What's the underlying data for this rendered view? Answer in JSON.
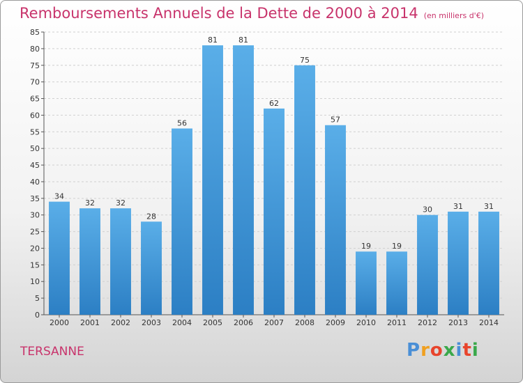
{
  "chart_data": {
    "type": "bar",
    "title": "Remboursements Annuels de la Dette de 2000 à 2014",
    "subtitle": "(en milliers d'€)",
    "categories": [
      "2000",
      "2001",
      "2002",
      "2003",
      "2004",
      "2005",
      "2006",
      "2007",
      "2008",
      "2009",
      "2010",
      "2011",
      "2012",
      "2013",
      "2014"
    ],
    "values": [
      34,
      32,
      32,
      28,
      56,
      81,
      81,
      62,
      75,
      57,
      19,
      19,
      30,
      31,
      31
    ],
    "ylim": [
      0,
      85
    ],
    "yticks": [
      0,
      5,
      10,
      15,
      20,
      25,
      30,
      35,
      40,
      45,
      50,
      55,
      60,
      65,
      70,
      75,
      80,
      85
    ],
    "grid": true,
    "bar_color": "#3d93d8"
  },
  "commune": "TERSANNE",
  "logo": {
    "letters": [
      "P",
      "r",
      "o",
      "x",
      "i",
      "t",
      "i"
    ],
    "colors": [
      "#4a8fd6",
      "#f0a020",
      "#e8442c",
      "#3aa84a",
      "#4a8fd6",
      "#e8442c",
      "#3aa84a"
    ]
  }
}
